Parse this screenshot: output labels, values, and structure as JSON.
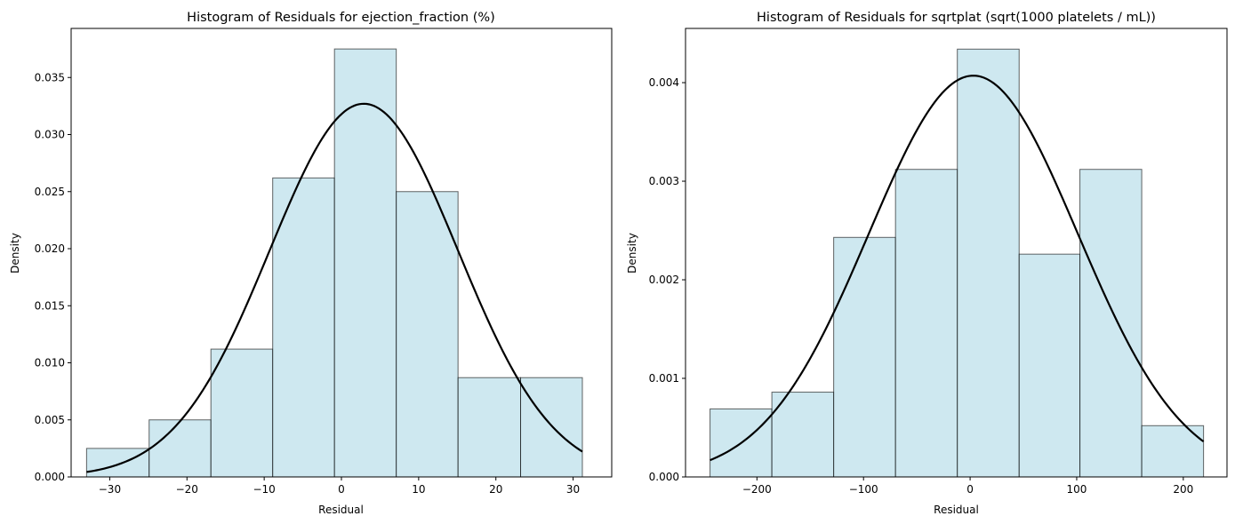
{
  "chart_data": [
    {
      "type": "histogram",
      "title": "Histogram of Residuals for ejection_fraction (%)",
      "xlabel": "Residual",
      "ylabel": "Density",
      "xlim": [
        -35,
        35
      ],
      "ylim": [
        0,
        0.0393
      ],
      "xticks": [
        -30,
        -20,
        -10,
        0,
        10,
        20,
        30
      ],
      "xtick_labels": [
        "−30",
        "−20",
        "−10",
        "0",
        "10",
        "20",
        "30"
      ],
      "yticks": [
        0,
        0.005,
        0.01,
        0.015,
        0.02,
        0.025,
        0.03,
        0.035
      ],
      "ytick_labels": [
        "0.000",
        "0.005",
        "0.010",
        "0.015",
        "0.020",
        "0.025",
        "0.030",
        "0.035"
      ],
      "bins": [
        {
          "x0": -33.0,
          "x1": -24.9,
          "density": 0.0025
        },
        {
          "x0": -24.9,
          "x1": -16.9,
          "density": 0.005
        },
        {
          "x0": -16.9,
          "x1": -8.9,
          "density": 0.0112
        },
        {
          "x0": -8.9,
          "x1": -0.9,
          "density": 0.0262
        },
        {
          "x0": -0.9,
          "x1": 7.1,
          "density": 0.0375
        },
        {
          "x0": 7.1,
          "x1": 15.1,
          "density": 0.025
        },
        {
          "x0": 15.1,
          "x1": 23.2,
          "density": 0.0087
        },
        {
          "x0": 23.2,
          "x1": 31.2,
          "density": 0.0087
        }
      ],
      "normal_curve": {
        "mean": 2.9,
        "sd": 12.2,
        "x_range": [
          -33.0,
          31.2
        ]
      },
      "bar_color": "#add8e6",
      "grid": false
    },
    {
      "type": "histogram",
      "title": "Histogram of Residuals for sqrtplat (sqrt(1000 platelets / mL))",
      "xlabel": "Residual",
      "ylabel": "Density",
      "xlim": [
        -267,
        241
      ],
      "ylim": [
        0,
        0.00455
      ],
      "xticks": [
        -200,
        -100,
        0,
        100,
        200
      ],
      "xtick_labels": [
        "−200",
        "−100",
        "0",
        "100",
        "200"
      ],
      "yticks": [
        0,
        0.001,
        0.002,
        0.003,
        0.004
      ],
      "ytick_labels": [
        "0.000",
        "0.001",
        "0.002",
        "0.003",
        "0.004"
      ],
      "bins": [
        {
          "x0": -244,
          "x1": -186,
          "density": 0.00069
        },
        {
          "x0": -186,
          "x1": -128,
          "density": 0.00086
        },
        {
          "x0": -128,
          "x1": -70,
          "density": 0.00243
        },
        {
          "x0": -70,
          "x1": -12,
          "density": 0.00312
        },
        {
          "x0": -12,
          "x1": 46,
          "density": 0.00434
        },
        {
          "x0": 46,
          "x1": 103,
          "density": 0.00226
        },
        {
          "x0": 103,
          "x1": 161,
          "density": 0.00312
        },
        {
          "x0": 161,
          "x1": 219,
          "density": 0.00052
        }
      ],
      "normal_curve": {
        "mean": 3,
        "sd": 98,
        "x_range": [
          -244,
          219
        ]
      },
      "bar_color": "#add8e6",
      "grid": false
    }
  ]
}
